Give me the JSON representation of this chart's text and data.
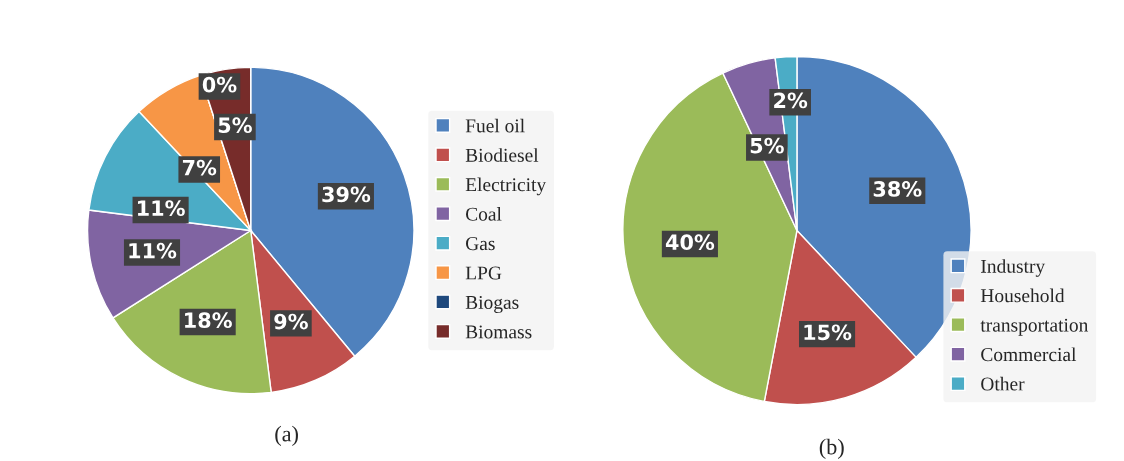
{
  "chart_data": [
    {
      "type": "pie",
      "categories": [
        "Fuel oil",
        "Biodiesel",
        "Electricity",
        "Coal",
        "Gas",
        "LPG",
        "Biogas",
        "Biomass"
      ],
      "values": [
        39,
        9,
        18,
        11,
        11,
        7,
        0,
        5
      ],
      "value_labels": [
        "39%",
        "9%",
        "18%",
        "11%",
        "11%",
        "7%",
        "0%",
        "5%"
      ],
      "colors": [
        "#4f81bd",
        "#c0504d",
        "#9bbb59",
        "#8064a2",
        "#4bacc6",
        "#f79646",
        "#1f497d",
        "#772c2a"
      ],
      "legend": "right",
      "annotations": [
        "(a)"
      ]
    },
    {
      "type": "pie",
      "categories": [
        "Industry",
        "Household",
        "transportation",
        "Commercial",
        "Other"
      ],
      "values": [
        38,
        15,
        40,
        5,
        2
      ],
      "value_labels": [
        "38%",
        "15%",
        "40%",
        "5%",
        "2%"
      ],
      "colors": [
        "#4f81bd",
        "#c0504d",
        "#9bbb59",
        "#8064a2",
        "#4bacc6"
      ],
      "legend": "bottom right",
      "annotations": [
        "(b)"
      ]
    }
  ]
}
